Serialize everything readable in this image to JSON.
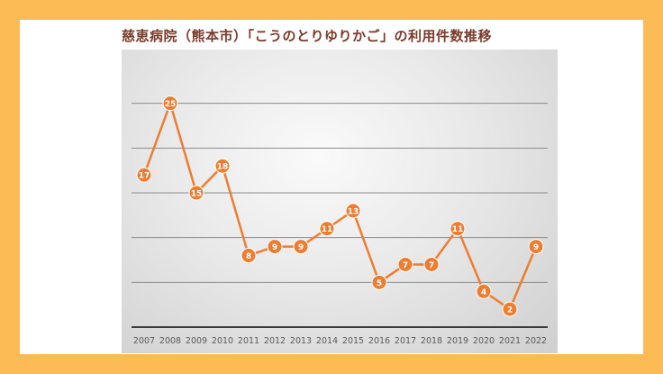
{
  "title": "慈恵病院（熊本市）「こうのとりゆりかご」の利用件数推移",
  "colors": {
    "frame": "#fdbb55",
    "series": "#ed7d31",
    "title": "#7a3a2a",
    "grid": "#8c8c8c",
    "axis_label": "#595959"
  },
  "chart_data": {
    "type": "line",
    "title": "慈恵病院（熊本市）「こうのとりゆりかご」の利用件数推移",
    "xlabel": "",
    "ylabel": "",
    "categories": [
      "2007",
      "2008",
      "2009",
      "2010",
      "2011",
      "2012",
      "2013",
      "2014",
      "2015",
      "2016",
      "2017",
      "2018",
      "2019",
      "2020",
      "2021",
      "2022"
    ],
    "values": [
      17,
      25,
      15,
      18,
      8,
      9,
      9,
      11,
      13,
      5,
      7,
      7,
      11,
      4,
      2,
      9
    ],
    "ylim": [
      0,
      30
    ],
    "y_gridlines": [
      0,
      5,
      10,
      15,
      20,
      25
    ],
    "grid": true,
    "legend": "none",
    "data_labels": true,
    "marker": "circle"
  }
}
